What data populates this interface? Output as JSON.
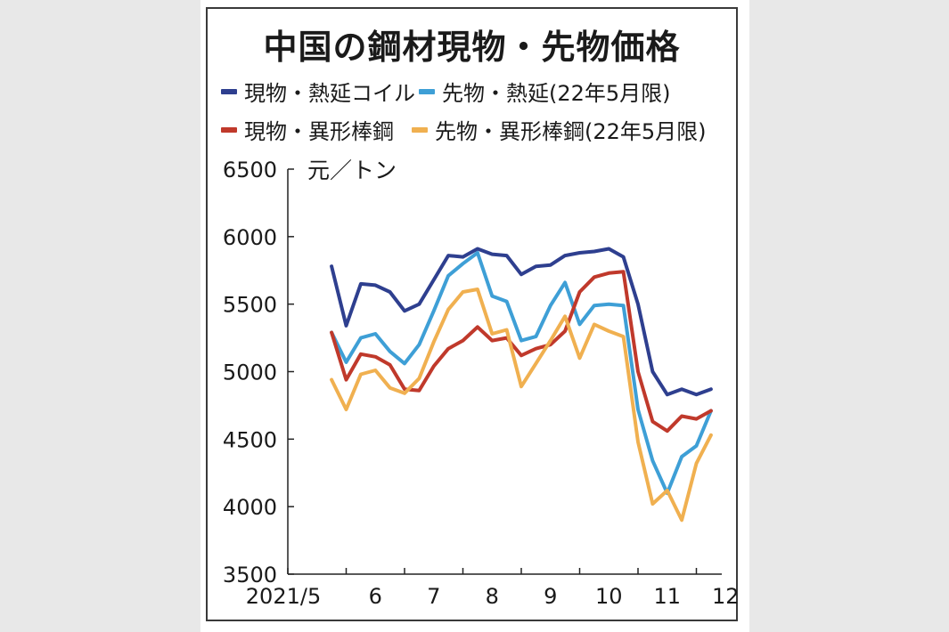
{
  "chart_data": {
    "type": "line",
    "title": "中国の鋼材現物・先物価格",
    "unit_label": "元／トン",
    "ylim": [
      3500,
      6500
    ],
    "y_ticks": [
      "6500",
      "6000",
      "5500",
      "5000",
      "4500",
      "4000",
      "3500"
    ],
    "x_ticks": [
      "2021/5",
      "6",
      "7",
      "8",
      "9",
      "10",
      "11",
      "12"
    ],
    "legend": [
      {
        "name": "現物・熱延コイル",
        "color": "#2e3f8f"
      },
      {
        "name": "先物・熱延(22年5月限)",
        "color": "#3e9fd6"
      },
      {
        "name": "現物・異形棒鋼",
        "color": "#c0392b"
      },
      {
        "name": "先物・異形棒鋼(22年5月限)",
        "color": "#f0b050"
      }
    ],
    "x": [
      0.75,
      1.0,
      1.25,
      1.5,
      1.75,
      2.0,
      2.25,
      2.5,
      2.75,
      3.0,
      3.25,
      3.5,
      3.75,
      4.0,
      4.25,
      4.5,
      4.75,
      5.0,
      5.25,
      5.5,
      5.75,
      6.0,
      6.25,
      6.5,
      6.75,
      7.0,
      7.25
    ],
    "series": [
      {
        "name": "現物・熱延コイル",
        "color": "#2e3f8f",
        "values": [
          5780,
          5340,
          5650,
          5640,
          5590,
          5450,
          5500,
          5680,
          5860,
          5850,
          5910,
          5870,
          5860,
          5720,
          5780,
          5790,
          5860,
          5880,
          5890,
          5910,
          5850,
          5500,
          5000,
          4830,
          4870,
          4830,
          4870
        ]
      },
      {
        "name": "先物・熱延(22年5月限)",
        "color": "#3e9fd6",
        "values": [
          5290,
          5070,
          5250,
          5280,
          5150,
          5060,
          5200,
          5450,
          5710,
          5800,
          5880,
          5560,
          5520,
          5230,
          5260,
          5490,
          5660,
          5350,
          5490,
          5500,
          5490,
          4720,
          4340,
          4100,
          4370,
          4450,
          4710
        ]
      },
      {
        "name": "現物・異形棒鋼",
        "color": "#c0392b",
        "values": [
          5290,
          4940,
          5130,
          5110,
          5050,
          4870,
          4860,
          5040,
          5170,
          5230,
          5330,
          5230,
          5250,
          5120,
          5170,
          5200,
          5300,
          5590,
          5700,
          5730,
          5740,
          5000,
          4630,
          4560,
          4670,
          4650,
          4710
        ]
      },
      {
        "name": "先物・異形棒鋼(22年5月限)",
        "color": "#f0b050",
        "values": [
          4940,
          4720,
          4980,
          5010,
          4880,
          4840,
          4950,
          5220,
          5460,
          5590,
          5610,
          5280,
          5310,
          4890,
          5060,
          5230,
          5410,
          5100,
          5350,
          5300,
          5260,
          4480,
          4020,
          4120,
          3900,
          4320,
          4530
        ]
      }
    ]
  }
}
